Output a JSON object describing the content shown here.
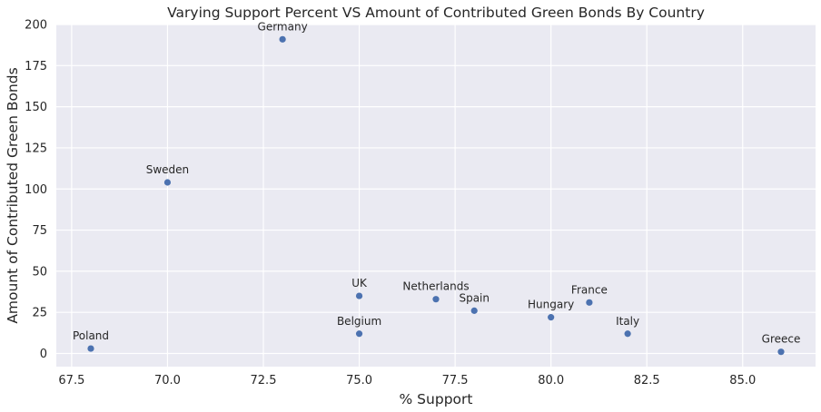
{
  "chart_data": {
    "type": "scatter",
    "title": "Varying Support Percent VS Amount of Contributed Green Bonds By Country",
    "xlabel": "% Support",
    "ylabel": "Amount of Contributed Green Bonds",
    "xlim": [
      67.1,
      86.9
    ],
    "ylim": [
      -8,
      200
    ],
    "x_ticks": [
      67.5,
      70.0,
      72.5,
      75.0,
      77.5,
      80.0,
      82.5,
      85.0
    ],
    "x_tick_labels": [
      "67.5",
      "70.0",
      "72.5",
      "75.0",
      "77.5",
      "80.0",
      "82.5",
      "85.0"
    ],
    "y_ticks": [
      0,
      25,
      50,
      75,
      100,
      125,
      150,
      175,
      200
    ],
    "y_tick_labels": [
      "0",
      "25",
      "50",
      "75",
      "100",
      "125",
      "150",
      "175",
      "200"
    ],
    "grid": true,
    "point_color": "#4c72b0",
    "background_color": "#eaeaf2",
    "points": [
      {
        "label": "Germany",
        "x": 73,
        "y": 191
      },
      {
        "label": "Sweden",
        "x": 70,
        "y": 104
      },
      {
        "label": "UK",
        "x": 75,
        "y": 35
      },
      {
        "label": "Belgium",
        "x": 75,
        "y": 12
      },
      {
        "label": "Netherlands",
        "x": 77,
        "y": 33
      },
      {
        "label": "Spain",
        "x": 78,
        "y": 26
      },
      {
        "label": "Hungary",
        "x": 80,
        "y": 22
      },
      {
        "label": "France",
        "x": 81,
        "y": 31
      },
      {
        "label": "Italy",
        "x": 82,
        "y": 12
      },
      {
        "label": "Poland",
        "x": 68,
        "y": 3
      },
      {
        "label": "Greece",
        "x": 86,
        "y": 1
      }
    ]
  }
}
